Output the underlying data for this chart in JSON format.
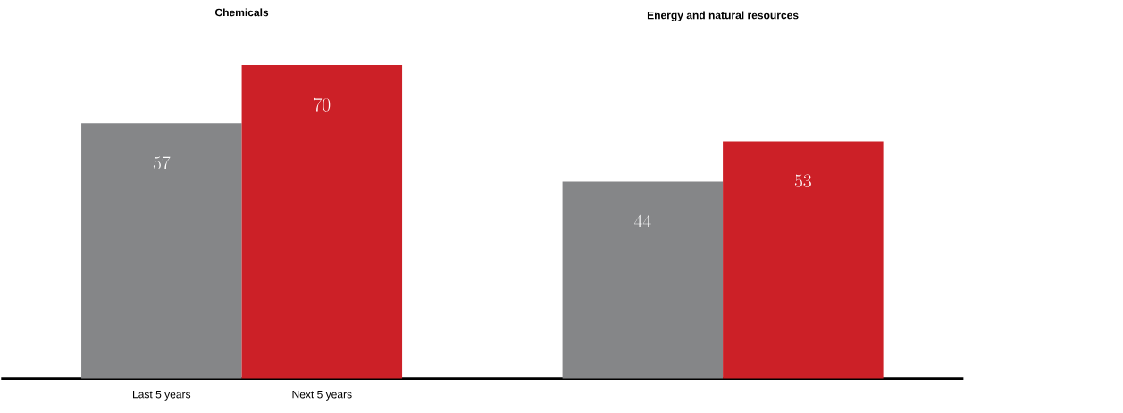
{
  "chart_data": [
    {
      "type": "bar",
      "title": "Chemicals",
      "categories": [
        "Last 5 years",
        "Next 5 years"
      ],
      "values": [
        57,
        70
      ],
      "colors": [
        "#858688",
        "#cc2027"
      ],
      "data_labels": true
    },
    {
      "type": "bar",
      "title": "Energy and natural resources",
      "categories": [
        null,
        null
      ],
      "values": [
        44,
        53
      ],
      "colors": [
        "#858688",
        "#cc2027"
      ],
      "data_labels": true
    }
  ]
}
